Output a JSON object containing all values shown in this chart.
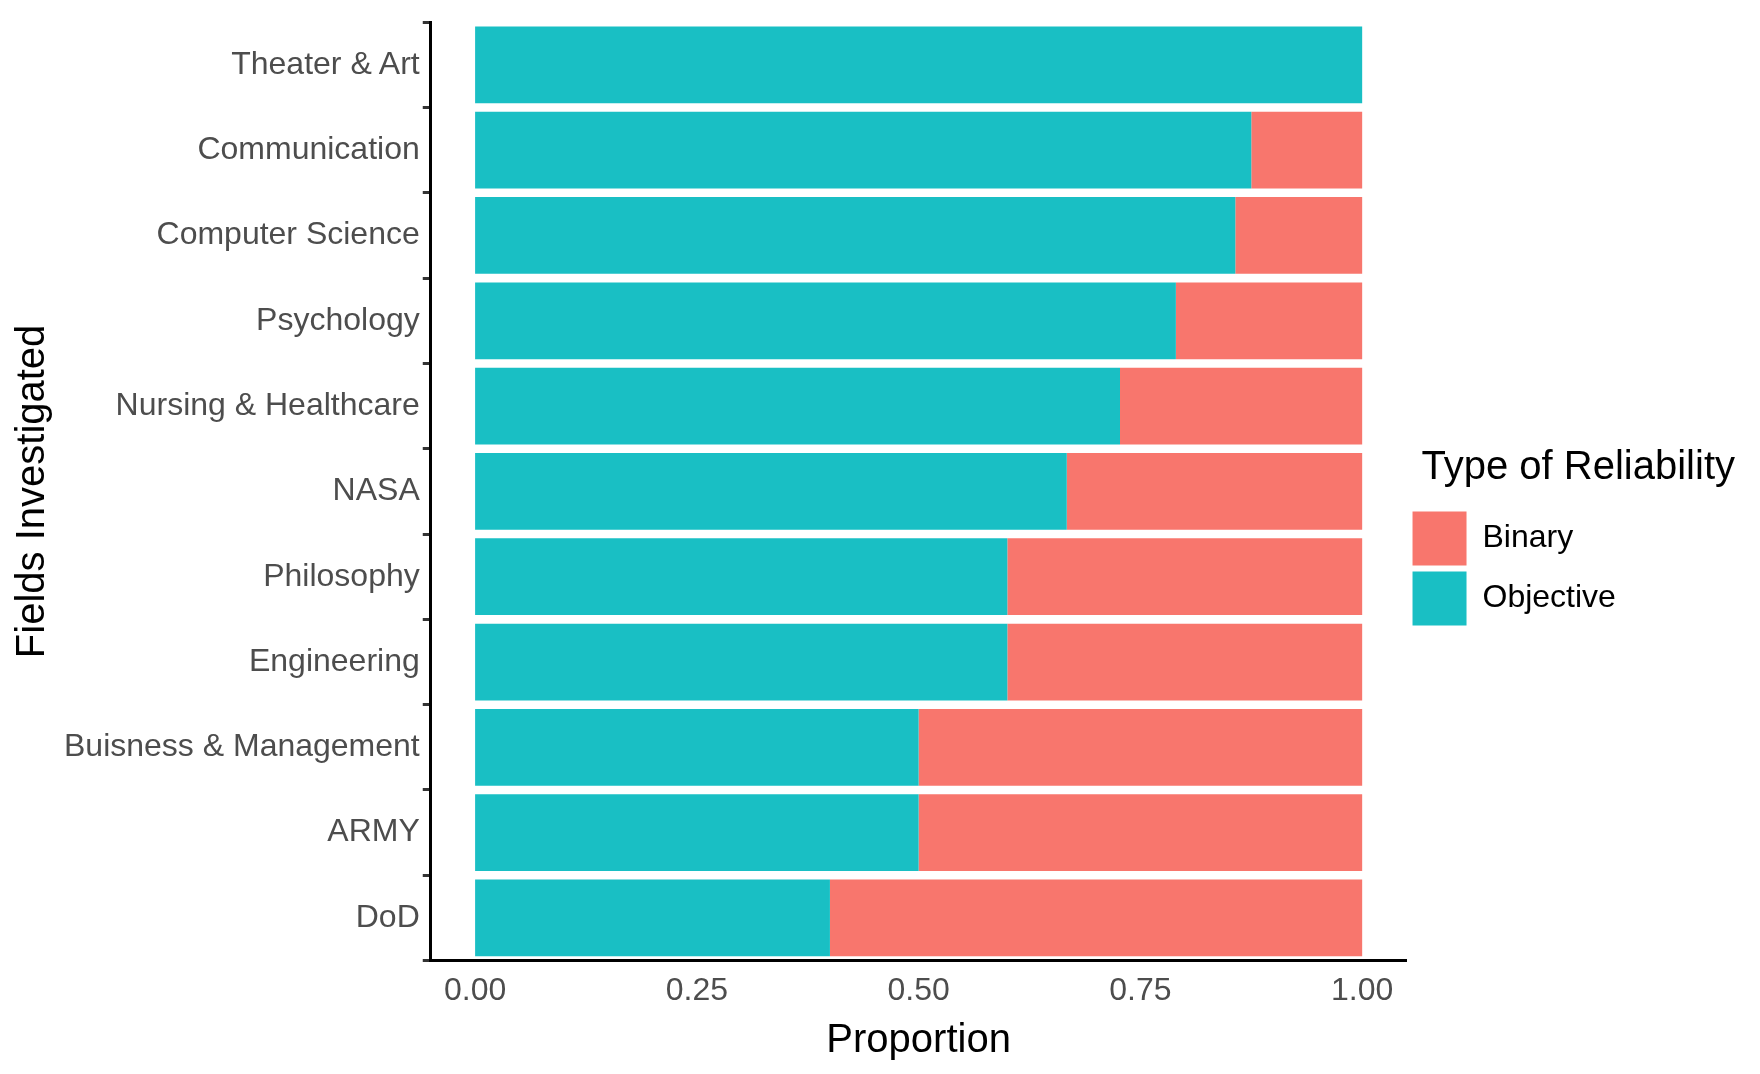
{
  "chart_data": {
    "type": "bar",
    "orientation": "horizontal",
    "stacked": true,
    "categories": [
      "Theater & Art",
      "Communication",
      "Computer Science",
      "Psychology",
      "Nursing & Healthcare",
      "NASA",
      "Philosophy",
      "Engineering",
      "Buisness & Management",
      "ARMY",
      "DoD"
    ],
    "series": [
      {
        "name": "Objective",
        "color": "#19bfc4",
        "values": [
          1.0,
          0.875,
          0.857,
          0.79,
          0.727,
          0.667,
          0.6,
          0.6,
          0.5,
          0.5,
          0.4
        ]
      },
      {
        "name": "Binary",
        "color": "#f8766d",
        "values": [
          0,
          0.125,
          0.143,
          0.21,
          0.273,
          0.333,
          0.4,
          0.4,
          0.5,
          0.5,
          0.6
        ]
      }
    ],
    "xlim": [
      -0.05,
      1.05
    ],
    "xticks": [
      {
        "value": 0,
        "label": "0.00"
      },
      {
        "value": 0.25,
        "label": "0.25"
      },
      {
        "value": 0.5,
        "label": "0.50"
      },
      {
        "value": 0.75,
        "label": "0.75"
      },
      {
        "value": 1,
        "label": "1.00"
      }
    ],
    "xlabel": "Proportion",
    "ylabel": "Fields Investigated",
    "legend": "right",
    "legend_title": "Type of Reliability"
  }
}
